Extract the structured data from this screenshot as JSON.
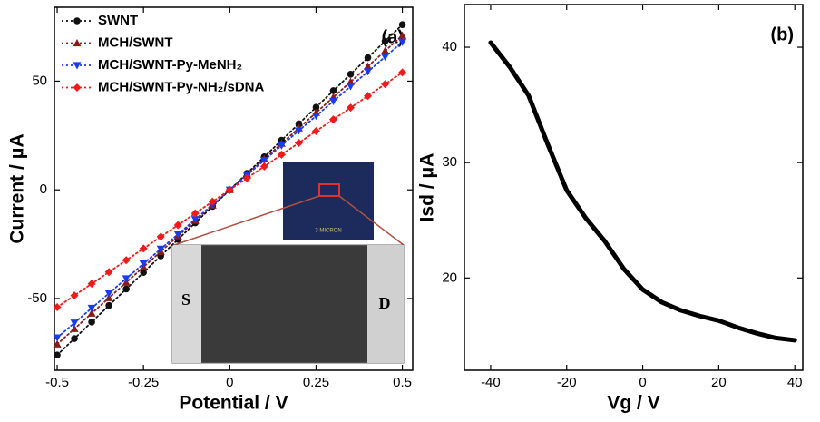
{
  "chart_data": [
    {
      "type": "line",
      "title": "(a)",
      "x_label": "Potential / V",
      "y_label": "Current / μA",
      "x": [
        -0.5,
        -0.45,
        -0.4,
        -0.35,
        -0.3,
        -0.25,
        -0.2,
        -0.15,
        -0.1,
        -0.05,
        0,
        0.05,
        0.1,
        0.15,
        0.2,
        0.25,
        0.3,
        0.35,
        0.4,
        0.45,
        0.5
      ],
      "series": [
        {
          "name": "SWNT",
          "color": "#111111",
          "marker": "circle",
          "values": [
            -76,
            -68.4,
            -60.8,
            -53.2,
            -45.6,
            -38,
            -30.4,
            -22.8,
            -15.2,
            -7.6,
            0,
            7.6,
            15.2,
            22.8,
            30.4,
            38,
            45.6,
            53.2,
            60.8,
            68.4,
            76
          ]
        },
        {
          "name": "MCH/SWNT",
          "color": "#8b1a1a",
          "marker": "triangle-up",
          "values": [
            -71,
            -63.9,
            -56.8,
            -49.7,
            -42.6,
            -35.5,
            -28.4,
            -21.3,
            -14.2,
            -7.1,
            0,
            7.1,
            14.2,
            21.3,
            28.4,
            35.5,
            42.6,
            49.7,
            56.8,
            63.9,
            71
          ]
        },
        {
          "name": "MCH/SWNT-Py-MeNH₂",
          "color": "#1a3cf0",
          "marker": "triangle-down",
          "values": [
            -68,
            -61.2,
            -54.4,
            -47.6,
            -40.8,
            -34,
            -27.2,
            -20.4,
            -13.6,
            -6.8,
            0,
            6.8,
            13.6,
            20.4,
            27.2,
            34,
            40.8,
            47.6,
            54.4,
            61.2,
            68
          ]
        },
        {
          "name": "MCH/SWNT-Py-NH₂/sDNA",
          "color": "#f01a1a",
          "marker": "diamond",
          "values": [
            -54,
            -48.6,
            -43.2,
            -37.8,
            -32.4,
            -27,
            -21.6,
            -16.2,
            -10.8,
            -5.4,
            0,
            5.4,
            10.8,
            16.2,
            21.6,
            27,
            32.4,
            37.8,
            43.2,
            48.6,
            54
          ]
        }
      ],
      "xlim": [
        -0.508,
        0.53
      ],
      "ylim": [
        -83,
        84
      ],
      "xticks": [
        -0.5,
        -0.25,
        0,
        0.25,
        0.5
      ],
      "yticks": [
        -50,
        0,
        50
      ],
      "legend": "upper left",
      "inset_labels": [
        "S",
        "D",
        "3 MICRON"
      ]
    },
    {
      "type": "line",
      "title": "(b)",
      "x_label": "Vg / V",
      "y_label": "Isd / μA",
      "x": [
        -40,
        -35,
        -30,
        -25,
        -20,
        -15,
        -10,
        -5,
        0,
        5,
        10,
        15,
        20,
        25,
        30,
        35,
        40
      ],
      "values": [
        40.4,
        38.3,
        35.8,
        31.6,
        27.6,
        25.2,
        23.2,
        20.8,
        19.0,
        17.9,
        17.2,
        16.7,
        16.3,
        15.7,
        15.2,
        14.8,
        14.6
      ],
      "color": "#000000",
      "xlim": [
        -46.9,
        42.1
      ],
      "ylim": [
        12,
        43.7
      ],
      "xticks": [
        -40,
        -20,
        0,
        20,
        40
      ],
      "yticks": [
        20,
        30,
        40
      ]
    }
  ]
}
